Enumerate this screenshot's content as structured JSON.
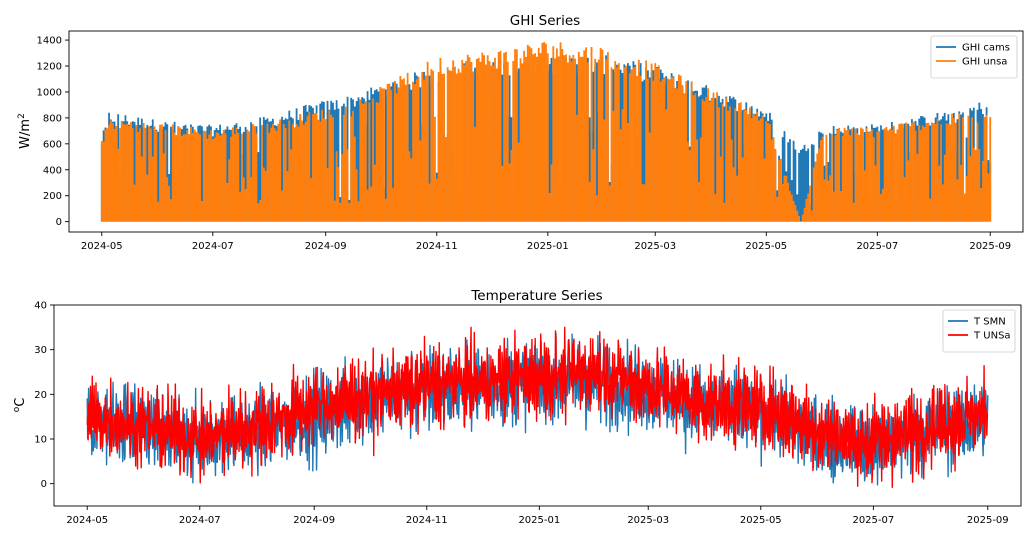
{
  "chart_data": [
    {
      "type": "area",
      "title": "GHI Series",
      "xlabel": "",
      "ylabel": "W/m",
      "ylabel_superscript": "2",
      "x_ticks": [
        "2024-05",
        "2024-07",
        "2024-09",
        "2024-11",
        "2025-01",
        "2025-03",
        "2025-05",
        "2025-07",
        "2025-09"
      ],
      "x_range": [
        "2024-04-13",
        "2025-09-19"
      ],
      "ylim": [
        -80,
        1470
      ],
      "y_ticks": [
        0,
        200,
        400,
        600,
        800,
        1000,
        1200,
        1400
      ],
      "grid": false,
      "legend_position": "top-right",
      "series": [
        {
          "name": "GHI cams",
          "color": "#1f77b4",
          "daily_max_approx": [
            {
              "x": "2024-05-01",
              "y": 640
            },
            {
              "x": "2024-05-05",
              "y": 840
            },
            {
              "x": "2024-06-01",
              "y": 770
            },
            {
              "x": "2024-07-01",
              "y": 730
            },
            {
              "x": "2024-08-01",
              "y": 800
            },
            {
              "x": "2024-08-25",
              "y": 900
            },
            {
              "x": "2024-09-15",
              "y": 960
            },
            {
              "x": "2024-10-01",
              "y": 1050
            },
            {
              "x": "2024-11-01",
              "y": 1180
            },
            {
              "x": "2024-12-01",
              "y": 1230
            },
            {
              "x": "2025-01-01",
              "y": 1270
            },
            {
              "x": "2025-02-01",
              "y": 1260
            },
            {
              "x": "2025-03-01",
              "y": 1180
            },
            {
              "x": "2025-04-01",
              "y": 1020
            },
            {
              "x": "2025-05-01",
              "y": 860
            },
            {
              "x": "2025-05-20",
              "y": 560
            },
            {
              "x": "2025-06-01",
              "y": 730
            },
            {
              "x": "2025-07-01",
              "y": 740
            },
            {
              "x": "2025-08-01",
              "y": 820
            },
            {
              "x": "2025-09-01",
              "y": 930
            }
          ]
        },
        {
          "name": "GHI unsa",
          "color": "#ff7f0e",
          "daily_max_approx": [
            {
              "x": "2024-05-01",
              "y": 620
            },
            {
              "x": "2024-05-05",
              "y": 790
            },
            {
              "x": "2024-06-01",
              "y": 750
            },
            {
              "x": "2024-07-01",
              "y": 700
            },
            {
              "x": "2024-08-01",
              "y": 760
            },
            {
              "x": "2024-08-25",
              "y": 840
            },
            {
              "x": "2024-09-15",
              "y": 900
            },
            {
              "x": "2024-10-01",
              "y": 1020
            },
            {
              "x": "2024-11-01",
              "y": 1250
            },
            {
              "x": "2024-12-01",
              "y": 1300
            },
            {
              "x": "2025-01-01",
              "y": 1380
            },
            {
              "x": "2025-02-01",
              "y": 1330
            },
            {
              "x": "2025-03-01",
              "y": 1200
            },
            {
              "x": "2025-04-01",
              "y": 1000
            },
            {
              "x": "2025-05-01",
              "y": 830
            },
            {
              "x": "2025-05-20",
              "y": 0
            },
            {
              "x": "2025-06-01",
              "y": 710
            },
            {
              "x": "2025-07-01",
              "y": 720
            },
            {
              "x": "2025-08-01",
              "y": 800
            },
            {
              "x": "2025-09-01",
              "y": 850
            }
          ]
        }
      ]
    },
    {
      "type": "line",
      "title": "Temperature Series",
      "xlabel": "",
      "ylabel": "C",
      "ylabel_superscript": "o",
      "x_ticks": [
        "2024-05",
        "2024-07",
        "2024-09",
        "2024-11",
        "2025-01",
        "2025-03",
        "2025-05",
        "2025-07",
        "2025-09"
      ],
      "x_range": [
        "2024-04-13",
        "2025-09-19"
      ],
      "ylim": [
        -5,
        40
      ],
      "y_ticks": [
        0,
        10,
        20,
        30,
        40
      ],
      "grid": false,
      "legend_position": "top-right",
      "series": [
        {
          "name": "T SMN",
          "color": "#1f77b4",
          "monthly_mean_approx": [
            {
              "x": "2024-05-01",
              "y": 14
            },
            {
              "x": "2024-06-01",
              "y": 12
            },
            {
              "x": "2024-07-01",
              "y": 9
            },
            {
              "x": "2024-08-01",
              "y": 12
            },
            {
              "x": "2024-09-01",
              "y": 15
            },
            {
              "x": "2024-10-01",
              "y": 19
            },
            {
              "x": "2024-11-01",
              "y": 21
            },
            {
              "x": "2024-12-01",
              "y": 22
            },
            {
              "x": "2025-01-01",
              "y": 23
            },
            {
              "x": "2025-02-01",
              "y": 23
            },
            {
              "x": "2025-03-01",
              "y": 21
            },
            {
              "x": "2025-04-01",
              "y": 17
            },
            {
              "x": "2025-05-01",
              "y": 16
            },
            {
              "x": "2025-06-01",
              "y": 10
            },
            {
              "x": "2025-07-01",
              "y": 8
            },
            {
              "x": "2025-08-01",
              "y": 12
            },
            {
              "x": "2025-09-01",
              "y": 14
            }
          ],
          "min_approx": -5,
          "max_approx": 37
        },
        {
          "name": "T UNSa",
          "color": "#ff0000",
          "monthly_mean_approx": [
            {
              "x": "2024-05-01",
              "y": 15
            },
            {
              "x": "2024-06-01",
              "y": 13
            },
            {
              "x": "2024-07-01",
              "y": 10
            },
            {
              "x": "2024-08-01",
              "y": 13
            },
            {
              "x": "2024-09-01",
              "y": 17
            },
            {
              "x": "2024-10-01",
              "y": 20
            },
            {
              "x": "2024-11-01",
              "y": 22
            },
            {
              "x": "2024-12-01",
              "y": 23
            },
            {
              "x": "2025-01-01",
              "y": 24
            },
            {
              "x": "2025-02-01",
              "y": 25
            },
            {
              "x": "2025-03-01",
              "y": 22
            },
            {
              "x": "2025-04-01",
              "y": 18
            },
            {
              "x": "2025-05-01",
              "y": 17
            },
            {
              "x": "2025-06-01",
              "y": 12
            },
            {
              "x": "2025-07-01",
              "y": 9
            },
            {
              "x": "2025-08-01",
              "y": 13
            },
            {
              "x": "2025-09-01",
              "y": 16
            }
          ],
          "min_approx": -2,
          "max_approx": 35
        }
      ]
    }
  ]
}
